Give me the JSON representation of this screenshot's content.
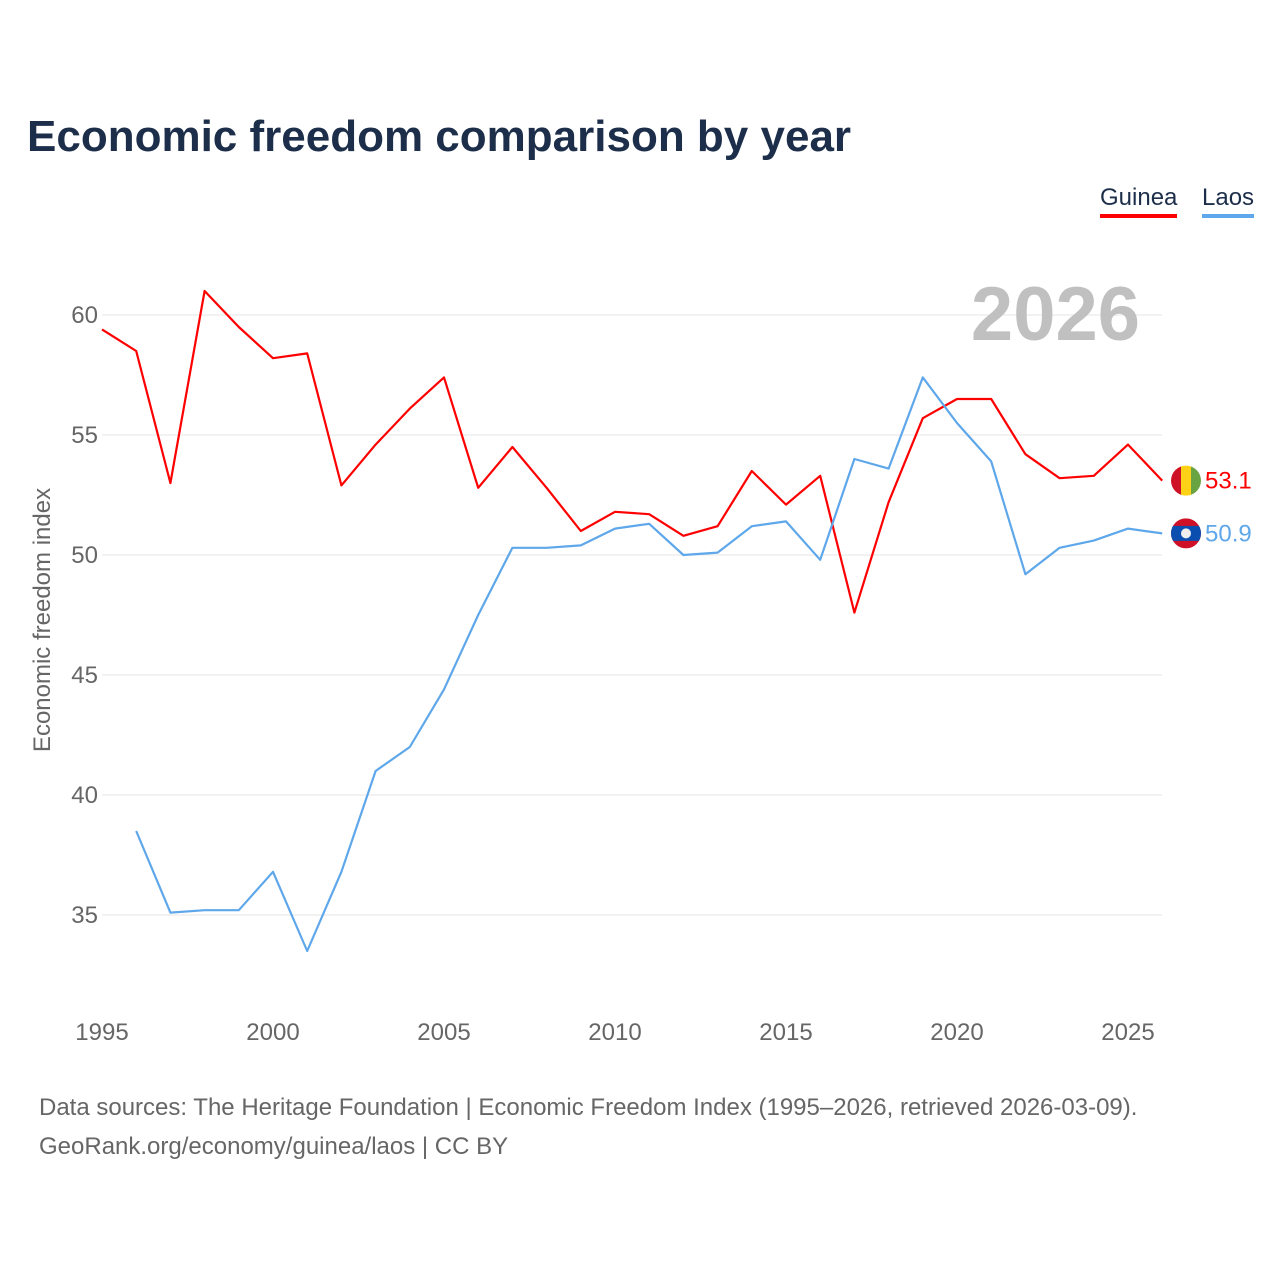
{
  "chart_data": {
    "type": "line",
    "title": "Economic freedom comparison by year",
    "ylabel": "Economic freedom index",
    "xlabel": "",
    "ylim": [
      31,
      63
    ],
    "xlim": [
      1995,
      2026
    ],
    "grid": true,
    "legend_position": "top-right",
    "current_year_label": "2026",
    "x_ticks": [
      1995,
      2000,
      2005,
      2010,
      2015,
      2020,
      2025
    ],
    "y_ticks": [
      35,
      40,
      45,
      50,
      55,
      60
    ],
    "x": [
      1995,
      1996,
      1997,
      1998,
      1999,
      2000,
      2001,
      2002,
      2003,
      2004,
      2005,
      2006,
      2007,
      2008,
      2009,
      2010,
      2011,
      2012,
      2013,
      2014,
      2015,
      2016,
      2017,
      2018,
      2019,
      2020,
      2021,
      2022,
      2023,
      2024,
      2025,
      2026
    ],
    "series": [
      {
        "name": "Guinea",
        "color": "#ff0000",
        "end_label": "53.1",
        "values": [
          59.4,
          58.5,
          53.0,
          61.0,
          59.5,
          58.2,
          58.4,
          52.9,
          54.6,
          56.1,
          57.4,
          52.8,
          54.5,
          52.8,
          51.0,
          51.8,
          51.7,
          50.8,
          51.2,
          53.5,
          52.1,
          53.3,
          47.6,
          52.2,
          55.7,
          56.5,
          56.5,
          54.2,
          53.2,
          53.3,
          54.6,
          53.1
        ]
      },
      {
        "name": "Laos",
        "color": "#5ea7ea",
        "end_label": "50.9",
        "values": [
          null,
          38.5,
          35.1,
          35.2,
          35.2,
          36.8,
          33.5,
          36.8,
          41.0,
          42.0,
          44.4,
          47.5,
          50.3,
          50.3,
          50.4,
          51.1,
          51.3,
          50.0,
          50.1,
          51.2,
          51.4,
          49.8,
          54.0,
          53.6,
          57.4,
          55.5,
          53.9,
          49.2,
          50.3,
          50.6,
          51.1,
          50.9
        ]
      }
    ]
  },
  "source_line1": "Data sources: The Heritage Foundation | Economic Freedom Index (1995–2026, retrieved 2026-03-09).",
  "source_line2": "GeoRank.org/economy/guinea/laos | CC BY"
}
